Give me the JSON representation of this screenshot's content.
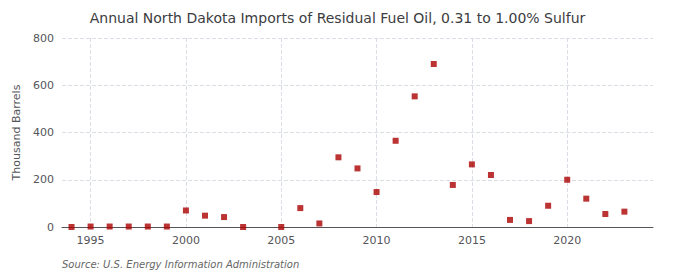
{
  "chart_data": {
    "type": "scatter",
    "title": "Annual North Dakota Imports of Residual Fuel Oil, 0.31 to 1.00% Sulfur",
    "ylabel": "Thousand Barrels",
    "annotation": "Source: U.S. Energy Information Administration",
    "x": [
      1994,
      1995,
      1996,
      1997,
      1998,
      1999,
      2000,
      2001,
      2002,
      2003,
      2005,
      2006,
      2007,
      2008,
      2009,
      2010,
      2011,
      2012,
      2013,
      2014,
      2015,
      2016,
      2017,
      2018,
      2019,
      2020,
      2021,
      2022,
      2023
    ],
    "values": [
      0,
      2,
      2,
      2,
      2,
      2,
      70,
      48,
      42,
      0,
      0,
      80,
      15,
      295,
      248,
      148,
      365,
      553,
      690,
      178,
      265,
      220,
      30,
      25,
      90,
      200,
      120,
      55,
      65
    ],
    "color": "#aa0000",
    "marker": "square",
    "xlim": [
      1993.5,
      2024.5
    ],
    "xticks": [
      1995,
      2000,
      2005,
      2010,
      2015,
      2020
    ],
    "ylim": [
      0,
      800
    ],
    "yticks": [
      0,
      200,
      400,
      600,
      800
    ],
    "grid": true
  }
}
